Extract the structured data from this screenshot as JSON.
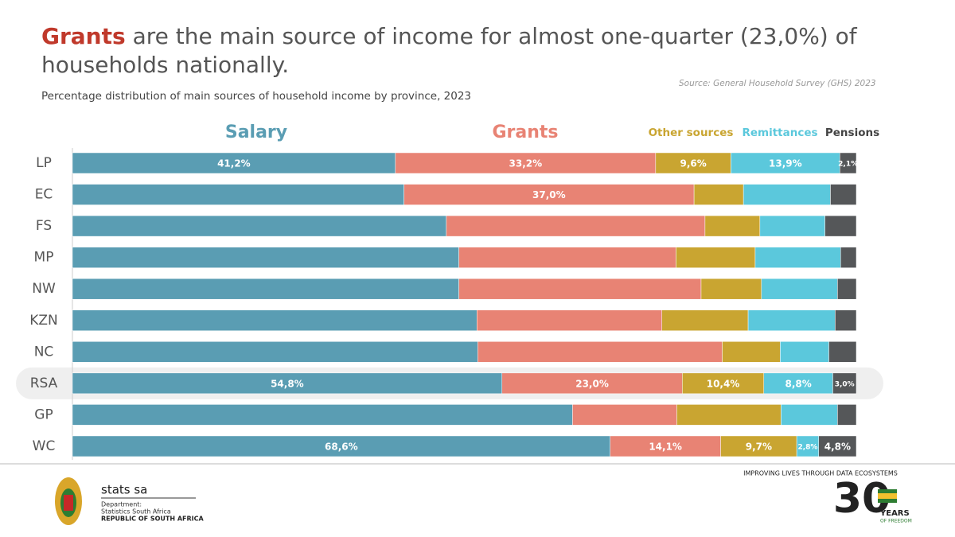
{
  "chart_data": {
    "type": "stacked-bar",
    "title_highlight": "Grants",
    "title": "are the main source of income for almost one-quarter (23,0%) of households nationally.",
    "subtitle": "Percentage distribution of main sources of household income by province, 2023",
    "source": "Source: General Household Survey (GHS) 2023",
    "categories": [
      "LP",
      "EC",
      "FS",
      "MP",
      "NW",
      "KZN",
      "NC",
      "RSA",
      "GP",
      "WC"
    ],
    "highlight": "RSA",
    "xlim": [
      0,
      100
    ],
    "series": [
      {
        "name": "Salary",
        "color": "#5a9db3",
        "values": [
          41.2,
          42.3,
          47.7,
          49.3,
          49.3,
          51.6,
          51.7,
          54.8,
          63.8,
          68.6
        ],
        "value_labels": [
          "41,2%",
          null,
          null,
          null,
          null,
          null,
          null,
          "54,8%",
          null,
          "68,6%"
        ]
      },
      {
        "name": "Grants",
        "color": "#e88374",
        "values": [
          33.2,
          37.0,
          33.0,
          27.7,
          30.9,
          23.6,
          31.2,
          23.0,
          13.3,
          14.1
        ],
        "value_labels": [
          "33,2%",
          "37,0%",
          null,
          null,
          null,
          null,
          null,
          "23,0%",
          null,
          "14,1%"
        ]
      },
      {
        "name": "Other sources",
        "color": "#c9a531",
        "values": [
          9.6,
          6.3,
          7.0,
          10.1,
          7.7,
          11.0,
          7.4,
          10.4,
          13.3,
          9.7
        ],
        "value_labels": [
          "9,6%",
          null,
          null,
          null,
          null,
          null,
          null,
          "10,4%",
          null,
          "9,7%"
        ]
      },
      {
        "name": "Remittances",
        "color": "#5bc8dc",
        "values": [
          13.9,
          11.1,
          8.3,
          10.9,
          9.7,
          11.1,
          6.2,
          8.8,
          7.2,
          2.8
        ],
        "value_labels": [
          "13,9%",
          null,
          null,
          null,
          null,
          null,
          null,
          "8,8%",
          null,
          "2,8%"
        ]
      },
      {
        "name": "Pensions",
        "color": "#555759",
        "values": [
          2.1,
          3.3,
          4.0,
          2.0,
          2.4,
          2.7,
          3.5,
          3.0,
          2.4,
          4.8
        ],
        "value_labels": [
          "2,1%",
          null,
          null,
          null,
          null,
          null,
          null,
          "3,0%",
          null,
          "4,8%"
        ]
      }
    ]
  },
  "footer": {
    "org": "stats sa",
    "dept": "Department:",
    "dept_name": "Statistics South Africa",
    "country": "REPUBLIC OF SOUTH AFRICA",
    "slogan": "IMPROVING LIVES THROUGH DATA ECOSYSTEMS",
    "years_num": "30",
    "years": "YEARS",
    "freedom": "OF FREEDOM"
  }
}
